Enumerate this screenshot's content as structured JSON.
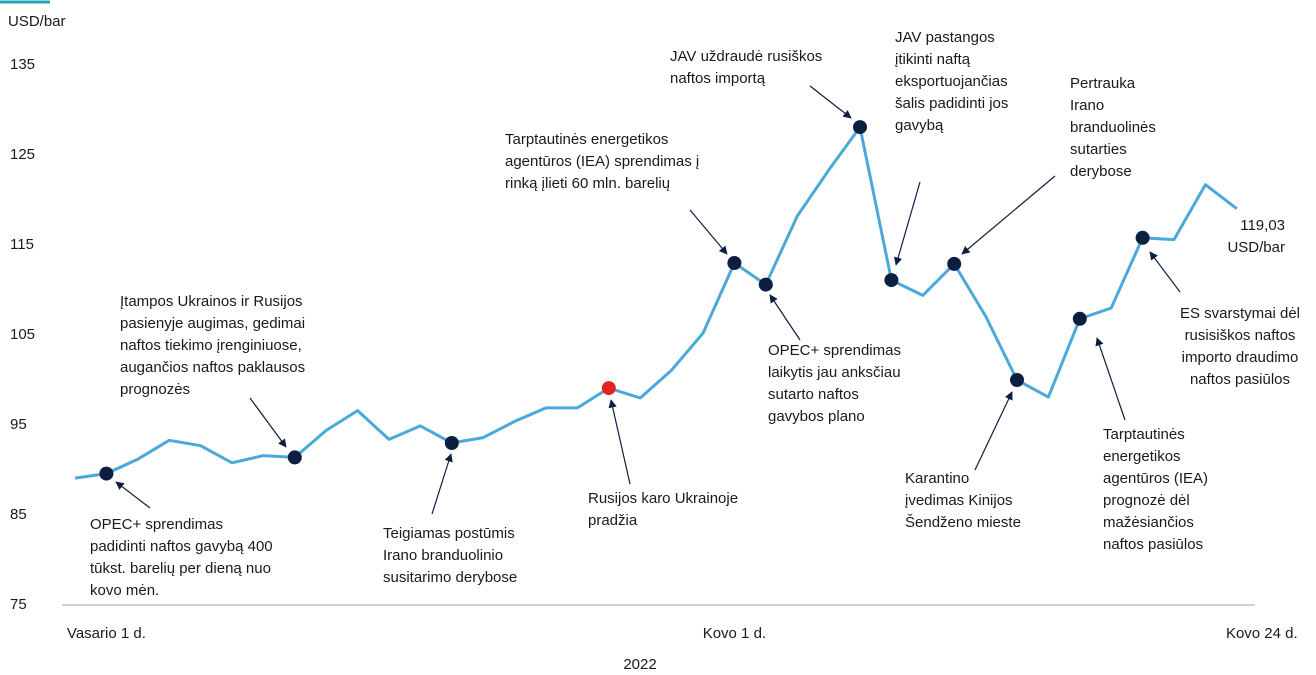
{
  "chart_data": {
    "type": "line",
    "y_label": "USD/bar",
    "x_label": "2022",
    "categories": [
      null,
      "Vasario 1 d.",
      null,
      null,
      null,
      null,
      null,
      null,
      null,
      null,
      null,
      null,
      null,
      null,
      null,
      null,
      null,
      null,
      null,
      null,
      null,
      "Kovo 1 d.",
      null,
      null,
      null,
      null,
      null,
      null,
      null,
      null,
      null,
      null,
      null,
      null,
      null,
      null,
      null,
      "Kovo 24 d."
    ],
    "values": [
      89.1,
      89.6,
      91.2,
      93.3,
      92.7,
      90.8,
      91.6,
      91.4,
      94.4,
      96.6,
      93.4,
      94.9,
      93.0,
      93.6,
      95.4,
      96.9,
      96.9,
      99.1,
      98.0,
      101.1,
      105.2,
      113.0,
      110.6,
      118.2,
      123.3,
      128.1,
      111.1,
      109.4,
      112.9,
      107.1,
      100.0,
      98.1,
      106.8,
      108.0,
      115.8,
      115.6,
      121.7,
      119.03
    ],
    "value_labels": [
      null,
      null,
      null,
      null,
      null,
      null,
      null,
      null,
      null,
      null,
      null,
      null,
      null,
      null,
      null,
      null,
      null,
      null,
      null,
      null,
      null,
      null,
      null,
      null,
      null,
      null,
      null,
      null,
      null,
      null,
      null,
      null,
      null,
      null,
      null,
      null,
      null,
      "119,03"
    ],
    "end_label_unit": "USD/bar",
    "color": "#4ba9d9",
    "marker_color": "#0c1f40",
    "highlight_color": "#e02424",
    "markers": [
      1,
      7,
      12,
      21,
      22,
      25,
      26,
      28,
      30,
      32,
      34
    ],
    "highlight": 17,
    "ylim": [
      75,
      135
    ],
    "yticks": [
      75,
      85,
      95,
      105,
      115,
      125,
      135
    ],
    "grid": false,
    "annotations": [
      {
        "lines": [
          "OPEC+ sprendimas",
          "padidinti naftos gavybą 400",
          "tūkst. barelių per dieną nuo",
          "kovo mėn."
        ]
      },
      {
        "lines": [
          "Įtampos Ukrainos ir Rusijos",
          "pasienyje augimas, gedimai",
          "naftos tiekimo įrenginiuose,",
          "augančios naftos paklausos",
          "prognozės"
        ]
      },
      {
        "lines": [
          "Teigiamas postūmis",
          "Irano branduolinio",
          "susitarimo derybose"
        ]
      },
      {
        "lines": [
          "Rusijos karo Ukrainoje",
          "pradžia"
        ]
      },
      {
        "lines": [
          "Tarptautinės energetikos",
          "agentūros (IEA) sprendimas į",
          "rinką įlieti 60 mln. barelių"
        ]
      },
      {
        "lines": [
          "OPEC+ sprendimas",
          "laikytis jau anksčiau",
          "sutarto naftos",
          "gavybos plano"
        ]
      },
      {
        "lines": [
          "JAV uždraudė rusiškos",
          "naftos importą"
        ]
      },
      {
        "lines": [
          "JAV pastangos",
          "įtikinti naftą",
          "eksportuojančias",
          "šalis padidinti jos",
          "gavybą"
        ]
      },
      {
        "lines": [
          "Pertrauka",
          "Irano",
          "branduolinės",
          "sutarties",
          "derybose"
        ]
      },
      {
        "lines": [
          "Karantino",
          "įvedimas Kinijos",
          "Šendženo mieste"
        ]
      },
      {
        "lines": [
          "Tarptautinės",
          "energetikos",
          "agentūros (IEA)",
          "prognozė dėl",
          "mažėsiančios",
          "naftos pasiūlos"
        ]
      },
      {
        "lines": [
          "ES svarstymai dėl",
          "rusisiškos naftos",
          "importo draudimo",
          "naftos pasiūlos"
        ]
      }
    ]
  }
}
